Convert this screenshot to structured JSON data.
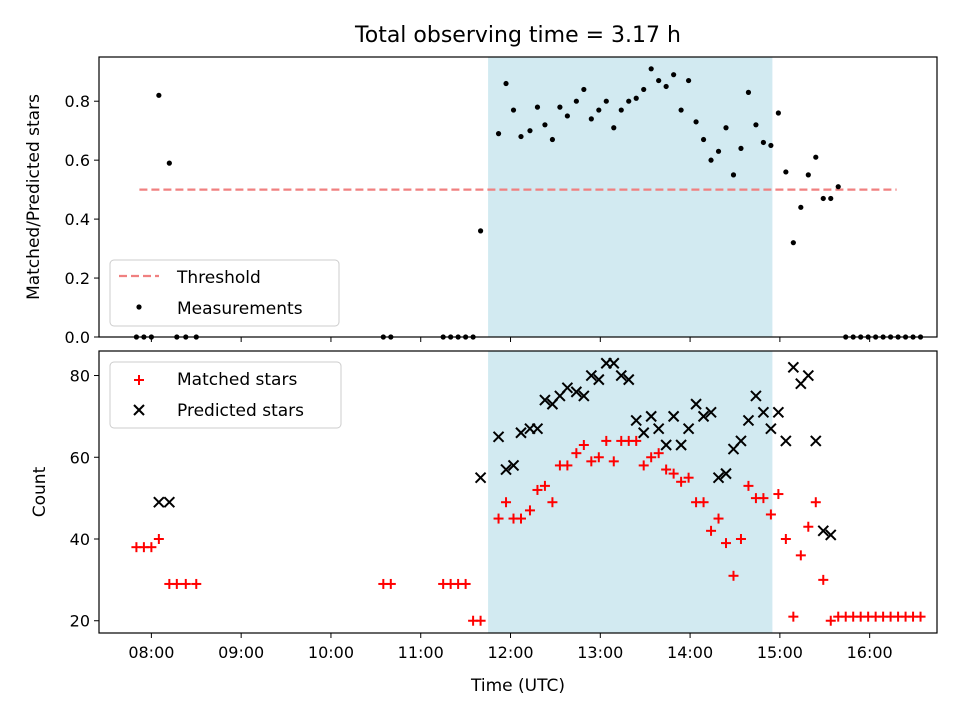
{
  "chart_data": {
    "title": "Total observing time = 3.17 h",
    "xlabel": "Time (UTC)",
    "x_ticks": [
      "08:00",
      "09:00",
      "10:00",
      "11:00",
      "12:00",
      "13:00",
      "14:00",
      "15:00",
      "16:00"
    ],
    "x_range": [
      "07:25",
      "16:45"
    ],
    "shaded_interval": [
      "11:45",
      "14:55"
    ],
    "colors": {
      "threshold": "#f08080",
      "measurements": "#000000",
      "matched": "#ff0000",
      "predicted": "#000000",
      "shade": "#add8e6"
    },
    "panels": [
      {
        "type": "scatter",
        "ylabel": "Matched/Predicted stars",
        "ylim": [
          0,
          0.95
        ],
        "y_ticks": [
          "0.0",
          "0.2",
          "0.4",
          "0.6",
          "0.8"
        ],
        "legend": {
          "placement": "lower-left",
          "entries": [
            "Threshold",
            "Measurements"
          ]
        },
        "threshold": {
          "name": "Threshold",
          "y": 0.5,
          "x_start": "07:52",
          "x_end": "16:18"
        },
        "series": [
          {
            "name": "Measurements",
            "points": [
              [
                "07:50",
                0
              ],
              [
                "07:55",
                0
              ],
              [
                "08:00",
                0
              ],
              [
                "08:05",
                0.82
              ],
              [
                "08:12",
                0.59
              ],
              [
                "08:17",
                0
              ],
              [
                "08:23",
                0
              ],
              [
                "08:30",
                0
              ],
              [
                "10:35",
                0
              ],
              [
                "10:40",
                0
              ],
              [
                "11:15",
                0
              ],
              [
                "11:20",
                0
              ],
              [
                "11:25",
                0
              ],
              [
                "11:30",
                0
              ],
              [
                "11:35",
                0
              ],
              [
                "11:40",
                0.36
              ],
              [
                "11:52",
                0.69
              ],
              [
                "11:57",
                0.86
              ],
              [
                "12:02",
                0.77
              ],
              [
                "12:07",
                0.68
              ],
              [
                "12:13",
                0.7
              ],
              [
                "12:18",
                0.78
              ],
              [
                "12:23",
                0.72
              ],
              [
                "12:28",
                0.67
              ],
              [
                "12:33",
                0.78
              ],
              [
                "12:38",
                0.75
              ],
              [
                "12:44",
                0.8
              ],
              [
                "12:49",
                0.84
              ],
              [
                "12:54",
                0.74
              ],
              [
                "12:59",
                0.77
              ],
              [
                "13:04",
                0.8
              ],
              [
                "13:09",
                0.71
              ],
              [
                "13:14",
                0.77
              ],
              [
                "13:19",
                0.8
              ],
              [
                "13:24",
                0.81
              ],
              [
                "13:29",
                0.84
              ],
              [
                "13:34",
                0.91
              ],
              [
                "13:39",
                0.87
              ],
              [
                "13:44",
                0.85
              ],
              [
                "13:49",
                0.89
              ],
              [
                "13:54",
                0.77
              ],
              [
                "13:59",
                0.87
              ],
              [
                "14:04",
                0.73
              ],
              [
                "14:09",
                0.67
              ],
              [
                "14:14",
                0.6
              ],
              [
                "14:19",
                0.63
              ],
              [
                "14:24",
                0.71
              ],
              [
                "14:29",
                0.55
              ],
              [
                "14:34",
                0.64
              ],
              [
                "14:39",
                0.83
              ],
              [
                "14:44",
                0.72
              ],
              [
                "14:49",
                0.66
              ],
              [
                "14:54",
                0.65
              ],
              [
                "14:59",
                0.76
              ],
              [
                "15:04",
                0.56
              ],
              [
                "15:09",
                0.32
              ],
              [
                "15:14",
                0.44
              ],
              [
                "15:19",
                0.55
              ],
              [
                "15:24",
                0.61
              ],
              [
                "15:29",
                0.47
              ],
              [
                "15:34",
                0.47
              ],
              [
                "15:39",
                0.51
              ],
              [
                "15:44",
                0
              ],
              [
                "15:49",
                0
              ],
              [
                "15:54",
                0
              ],
              [
                "15:59",
                0
              ],
              [
                "16:04",
                0
              ],
              [
                "16:09",
                0
              ],
              [
                "16:14",
                0
              ],
              [
                "16:19",
                0
              ],
              [
                "16:24",
                0
              ],
              [
                "16:29",
                0
              ],
              [
                "16:34",
                0
              ]
            ]
          }
        ]
      },
      {
        "type": "scatter",
        "ylabel": "Count",
        "ylim": [
          17,
          86
        ],
        "y_ticks": [
          "20",
          "40",
          "60",
          "80"
        ],
        "legend": {
          "placement": "top-left",
          "entries": [
            "Matched stars",
            "Predicted stars"
          ]
        },
        "series": [
          {
            "name": "Matched stars",
            "marker": "plus",
            "points": [
              [
                "07:50",
                38
              ],
              [
                "07:55",
                38
              ],
              [
                "08:00",
                38
              ],
              [
                "08:05",
                40
              ],
              [
                "08:12",
                29
              ],
              [
                "08:17",
                29
              ],
              [
                "08:23",
                29
              ],
              [
                "08:30",
                29
              ],
              [
                "10:35",
                29
              ],
              [
                "10:40",
                29
              ],
              [
                "11:15",
                29
              ],
              [
                "11:20",
                29
              ],
              [
                "11:25",
                29
              ],
              [
                "11:30",
                29
              ],
              [
                "11:35",
                20
              ],
              [
                "11:40",
                20
              ],
              [
                "11:52",
                45
              ],
              [
                "11:57",
                49
              ],
              [
                "12:02",
                45
              ],
              [
                "12:07",
                45
              ],
              [
                "12:13",
                47
              ],
              [
                "12:18",
                52
              ],
              [
                "12:23",
                53
              ],
              [
                "12:28",
                49
              ],
              [
                "12:33",
                58
              ],
              [
                "12:38",
                58
              ],
              [
                "12:44",
                61
              ],
              [
                "12:49",
                63
              ],
              [
                "12:54",
                59
              ],
              [
                "12:59",
                60
              ],
              [
                "13:04",
                64
              ],
              [
                "13:09",
                59
              ],
              [
                "13:14",
                64
              ],
              [
                "13:19",
                64
              ],
              [
                "13:24",
                64
              ],
              [
                "13:29",
                58
              ],
              [
                "13:34",
                60
              ],
              [
                "13:39",
                61
              ],
              [
                "13:44",
                57
              ],
              [
                "13:49",
                56
              ],
              [
                "13:54",
                54
              ],
              [
                "13:59",
                55
              ],
              [
                "14:04",
                49
              ],
              [
                "14:09",
                49
              ],
              [
                "14:14",
                42
              ],
              [
                "14:19",
                45
              ],
              [
                "14:24",
                39
              ],
              [
                "14:29",
                31
              ],
              [
                "14:34",
                40
              ],
              [
                "14:39",
                53
              ],
              [
                "14:44",
                50
              ],
              [
                "14:49",
                50
              ],
              [
                "14:54",
                46
              ],
              [
                "14:59",
                51
              ],
              [
                "15:04",
                40
              ],
              [
                "15:09",
                21
              ],
              [
                "15:14",
                36
              ],
              [
                "15:19",
                43
              ],
              [
                "15:24",
                49
              ],
              [
                "15:29",
                30
              ],
              [
                "15:34",
                20
              ],
              [
                "15:39",
                21
              ],
              [
                "15:44",
                21
              ],
              [
                "15:49",
                21
              ],
              [
                "15:54",
                21
              ],
              [
                "15:59",
                21
              ],
              [
                "16:04",
                21
              ],
              [
                "16:09",
                21
              ],
              [
                "16:14",
                21
              ],
              [
                "16:19",
                21
              ],
              [
                "16:24",
                21
              ],
              [
                "16:29",
                21
              ],
              [
                "16:34",
                21
              ]
            ]
          },
          {
            "name": "Predicted stars",
            "marker": "x",
            "points": [
              [
                "08:05",
                49
              ],
              [
                "08:12",
                49
              ],
              [
                "11:40",
                55
              ],
              [
                "11:52",
                65
              ],
              [
                "11:57",
                57
              ],
              [
                "12:02",
                58
              ],
              [
                "12:07",
                66
              ],
              [
                "12:13",
                67
              ],
              [
                "12:18",
                67
              ],
              [
                "12:23",
                74
              ],
              [
                "12:28",
                73
              ],
              [
                "12:33",
                75
              ],
              [
                "12:38",
                77
              ],
              [
                "12:44",
                76
              ],
              [
                "12:49",
                75
              ],
              [
                "12:54",
                80
              ],
              [
                "12:59",
                79
              ],
              [
                "13:04",
                83
              ],
              [
                "13:09",
                83
              ],
              [
                "13:14",
                80
              ],
              [
                "13:19",
                79
              ],
              [
                "13:24",
                69
              ],
              [
                "13:29",
                66
              ],
              [
                "13:34",
                70
              ],
              [
                "13:39",
                67
              ],
              [
                "13:44",
                63
              ],
              [
                "13:49",
                70
              ],
              [
                "13:54",
                63
              ],
              [
                "13:59",
                67
              ],
              [
                "14:04",
                73
              ],
              [
                "14:09",
                70
              ],
              [
                "14:14",
                71
              ],
              [
                "14:19",
                55
              ],
              [
                "14:24",
                56
              ],
              [
                "14:29",
                62
              ],
              [
                "14:34",
                64
              ],
              [
                "14:39",
                69
              ],
              [
                "14:44",
                75
              ],
              [
                "14:49",
                71
              ],
              [
                "14:54",
                67
              ],
              [
                "14:59",
                71
              ],
              [
                "15:04",
                64
              ],
              [
                "15:09",
                82
              ],
              [
                "15:14",
                78
              ],
              [
                "15:19",
                80
              ],
              [
                "15:24",
                64
              ],
              [
                "15:29",
                42
              ],
              [
                "15:34",
                41
              ]
            ]
          }
        ]
      }
    ]
  }
}
